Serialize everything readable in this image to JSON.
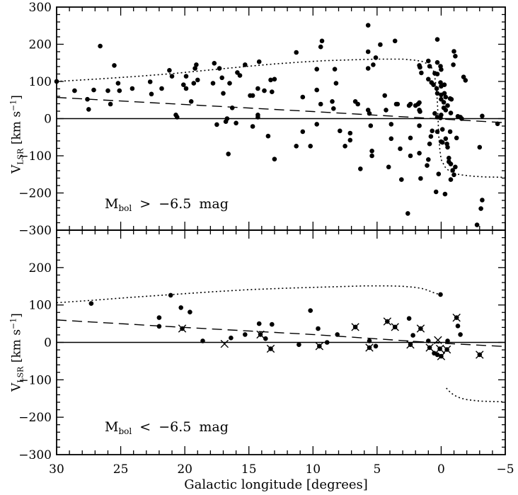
{
  "labels": {
    "x_axis": "Galactic longitude [degrees]",
    "y_axis": {
      "pre": "V",
      "sub": "LSR",
      "mid": " [km s",
      "sup": "−1",
      "end": "]"
    }
  },
  "chart_data": {
    "type": "scatter",
    "title": "",
    "xlabel": "Galactic longitude [degrees]",
    "ylabel": "V_LSR [km s^-1]",
    "xlim": [
      30,
      -5
    ],
    "ylim": [
      -300,
      300
    ],
    "x_axis_reversed": true,
    "grid": false,
    "x_major_ticks": [
      30,
      25,
      20,
      15,
      10,
      5,
      0,
      -5
    ],
    "x_tick_labels": [
      "30",
      "25",
      "20",
      "15",
      "10",
      "5",
      "0",
      "−5"
    ],
    "x_minor_step": 1,
    "y_minor_step": 20,
    "legend": "none",
    "marker": "filled-circle",
    "panels": [
      {
        "name": "Mbol brighter limit panel",
        "annotation": {
          "m": "M",
          "sub": "bol",
          "rest": " > −6.5 mag"
        },
        "tick_values": [
          300,
          200,
          100,
          0,
          -100,
          -200,
          -300
        ],
        "tick_labels": [
          "300",
          "200",
          "100",
          "0",
          "−100",
          "−200",
          "−300"
        ],
        "zero_line": 0,
        "dashed_curve": [
          [
            30,
            57
          ],
          [
            20,
            38
          ],
          [
            10,
            19
          ],
          [
            0,
            -1
          ],
          [
            -5,
            -11
          ]
        ],
        "dotted_curve": [
          [
            30,
            100
          ],
          [
            27,
            106
          ],
          [
            24,
            113
          ],
          [
            21,
            121
          ],
          [
            18,
            131
          ],
          [
            15,
            141
          ],
          [
            13,
            147
          ],
          [
            11,
            152
          ],
          [
            9,
            156
          ],
          [
            7,
            158
          ],
          [
            5,
            160
          ],
          [
            4,
            160
          ],
          [
            3,
            160
          ],
          [
            2,
            157
          ],
          [
            1.5,
            154
          ],
          [
            1.1,
            148
          ],
          [
            0.8,
            140
          ],
          [
            0.6,
            128
          ],
          [
            0.5,
            112
          ],
          [
            0.4,
            88
          ],
          [
            0.3,
            48
          ],
          [
            0.25,
            10
          ],
          [
            0.2,
            -40
          ],
          [
            0.1,
            -85
          ],
          [
            0,
            -110
          ],
          [
            -0.3,
            -130
          ],
          [
            -0.6,
            -140
          ],
          [
            -1,
            -147
          ],
          [
            -1.5,
            -151
          ],
          [
            -2.5,
            -155
          ],
          [
            -3.5,
            -157
          ],
          [
            -5,
            -158
          ]
        ],
        "points": [
          [
            30,
            100
          ],
          [
            28.6,
            75
          ],
          [
            27.6,
            52
          ],
          [
            27.5,
            25
          ],
          [
            27.1,
            77
          ],
          [
            26.6,
            195
          ],
          [
            26.0,
            75
          ],
          [
            25.8,
            39
          ],
          [
            25.5,
            143
          ],
          [
            25.2,
            95
          ],
          [
            25.1,
            75
          ],
          [
            24.1,
            81
          ],
          [
            22.7,
            99
          ],
          [
            22.6,
            66
          ],
          [
            21.8,
            81
          ],
          [
            21.2,
            130
          ],
          [
            21.0,
            114
          ],
          [
            20.7,
            10
          ],
          [
            20.6,
            4
          ],
          [
            20.1,
            91
          ],
          [
            19.9,
            114
          ],
          [
            19.9,
            81
          ],
          [
            19.5,
            46
          ],
          [
            19.3,
            95
          ],
          [
            19.2,
            135
          ],
          [
            19.1,
            145
          ],
          [
            19.0,
            104
          ],
          [
            17.8,
            95
          ],
          [
            17.7,
            149
          ],
          [
            17.5,
            -16
          ],
          [
            17.3,
            135
          ],
          [
            17.1,
            110
          ],
          [
            17.0,
            68
          ],
          [
            16.8,
            -8
          ],
          [
            16.7,
            0
          ],
          [
            16.6,
            -95
          ],
          [
            16.5,
            95
          ],
          [
            16.3,
            29
          ],
          [
            16.0,
            -12
          ],
          [
            15.9,
            124
          ],
          [
            15.7,
            116
          ],
          [
            15.3,
            145
          ],
          [
            14.9,
            62
          ],
          [
            14.7,
            62
          ],
          [
            14.7,
            -21
          ],
          [
            14.3,
            81
          ],
          [
            14.3,
            10
          ],
          [
            14.3,
            4
          ],
          [
            14.2,
            153
          ],
          [
            13.8,
            75
          ],
          [
            13.5,
            -47
          ],
          [
            13.3,
            104
          ],
          [
            13.2,
            72
          ],
          [
            13.0,
            106
          ],
          [
            13.0,
            -109
          ],
          [
            11.3,
            178
          ],
          [
            11.3,
            -74
          ],
          [
            10.8,
            58
          ],
          [
            10.8,
            -35
          ],
          [
            10.2,
            -74
          ],
          [
            9.7,
            133
          ],
          [
            9.7,
            77
          ],
          [
            9.7,
            -15
          ],
          [
            9.4,
            193
          ],
          [
            9.4,
            39
          ],
          [
            9.3,
            209
          ],
          [
            8.5,
            46
          ],
          [
            8.4,
            27
          ],
          [
            8.3,
            133
          ],
          [
            8.2,
            95
          ],
          [
            7.9,
            -33
          ],
          [
            7.5,
            -74
          ],
          [
            7.1,
            -39
          ],
          [
            7.1,
            -58
          ],
          [
            6.7,
            46
          ],
          [
            6.5,
            39
          ],
          [
            6.3,
            -135
          ],
          [
            5.7,
            251
          ],
          [
            5.7,
            180
          ],
          [
            5.7,
            135
          ],
          [
            5.7,
            23
          ],
          [
            5.6,
            14
          ],
          [
            5.5,
            -19
          ],
          [
            5.4,
            -87
          ],
          [
            5.4,
            -100
          ],
          [
            5.3,
            145
          ],
          [
            5.1,
            164
          ],
          [
            4.75,
            199
          ],
          [
            4.4,
            62
          ],
          [
            4.3,
            23
          ],
          [
            4.1,
            -130
          ],
          [
            3.9,
            -15
          ],
          [
            3.9,
            -54
          ],
          [
            3.6,
            209
          ],
          [
            3.5,
            39
          ],
          [
            3.4,
            39
          ],
          [
            3.2,
            -81
          ],
          [
            3.1,
            -164
          ],
          [
            2.6,
            -255
          ],
          [
            2.5,
            35
          ],
          [
            2.4,
            39
          ],
          [
            2.4,
            -52
          ],
          [
            2.4,
            -100
          ],
          [
            2.0,
            35
          ],
          [
            1.8,
            39
          ],
          [
            1.7,
            143
          ],
          [
            1.7,
            43
          ],
          [
            1.7,
            23
          ],
          [
            1.7,
            -19
          ],
          [
            1.7,
            -93
          ],
          [
            1.65,
            138
          ],
          [
            1.65,
            19
          ],
          [
            1.6,
            -161
          ],
          [
            1.55,
            123
          ],
          [
            1.1,
            -126
          ],
          [
            1.0,
            155
          ],
          [
            1.0,
            106
          ],
          [
            1.0,
            -110
          ],
          [
            0.9,
            141
          ],
          [
            0.9,
            -68
          ],
          [
            0.8,
            -48
          ],
          [
            0.75,
            97
          ],
          [
            0.7,
            -33
          ],
          [
            0.6,
            91
          ],
          [
            0.5,
            122
          ],
          [
            0.5,
            14
          ],
          [
            0.4,
            -197
          ],
          [
            0.35,
            81
          ],
          [
            0.3,
            213
          ],
          [
            0.3,
            151
          ],
          [
            0.3,
            120
          ],
          [
            0.3,
            68
          ],
          [
            0.3,
            -35
          ],
          [
            0.3,
            4
          ],
          [
            0.2,
            -149
          ],
          [
            0.05,
            141
          ],
          [
            0.05,
            97
          ],
          [
            0.05,
            2
          ],
          [
            0.0,
            132
          ],
          [
            0.0,
            87
          ],
          [
            0.0,
            64
          ],
          [
            0.0,
            52
          ],
          [
            0.0,
            10
          ],
          [
            0.0,
            -62
          ],
          [
            -0.1,
            -29
          ],
          [
            -0.1,
            -64
          ],
          [
            -0.2,
            44
          ],
          [
            -0.2,
            29
          ],
          [
            -0.25,
            91
          ],
          [
            -0.25,
            68
          ],
          [
            -0.3,
            -203
          ],
          [
            -0.35,
            58
          ],
          [
            -0.35,
            23
          ],
          [
            -0.35,
            -54
          ],
          [
            -0.45,
            -68
          ],
          [
            -0.5,
            35
          ],
          [
            -0.5,
            -77
          ],
          [
            -0.6,
            -106
          ],
          [
            -0.6,
            -116
          ],
          [
            -0.7,
            54
          ],
          [
            -0.7,
            -35
          ],
          [
            -0.75,
            15
          ],
          [
            -0.75,
            -122
          ],
          [
            -0.75,
            -164
          ],
          [
            -0.8,
            52
          ],
          [
            -0.9,
            -139
          ],
          [
            -0.95,
            145
          ],
          [
            -1.0,
            181
          ],
          [
            -1.0,
            -151
          ],
          [
            -1.1,
            168
          ],
          [
            -1.1,
            -130
          ],
          [
            -1.2,
            -52
          ],
          [
            -1.3,
            6
          ],
          [
            -1.5,
            4
          ],
          [
            -1.6,
            0
          ],
          [
            -1.75,
            112
          ],
          [
            -1.9,
            103
          ],
          [
            -2.8,
            -286
          ],
          [
            -3.0,
            -77
          ],
          [
            -3.1,
            -242
          ],
          [
            -3.2,
            7
          ],
          [
            -3.2,
            -219
          ],
          [
            -4.4,
            -14
          ]
        ],
        "crossed_points": [],
        "crosses_only": []
      },
      {
        "name": "Mbol fainter limit panel",
        "annotation": {
          "m": "M",
          "sub": "bol",
          "rest": " < −6.5 mag"
        },
        "tick_values": [
          200,
          100,
          0,
          -100,
          -200,
          -300
        ],
        "tick_labels": [
          "200",
          "100",
          "0",
          "−100",
          "−200",
          "−300"
        ],
        "zero_line": 0,
        "dashed_curve": [
          [
            30,
            60
          ],
          [
            20,
            40
          ],
          [
            10,
            21
          ],
          [
            0,
            -2
          ],
          [
            -5,
            -11
          ]
        ],
        "dotted_curve": [
          [
            30,
            106
          ],
          [
            27,
            113
          ],
          [
            24,
            121
          ],
          [
            21,
            128
          ],
          [
            18,
            135
          ],
          [
            15,
            141
          ],
          [
            12,
            145
          ],
          [
            10,
            147
          ],
          [
            8,
            149
          ],
          [
            6,
            151
          ],
          [
            4,
            151
          ],
          [
            3,
            150
          ],
          [
            2,
            147
          ],
          [
            1.5,
            144
          ],
          [
            1,
            139
          ],
          [
            0.7,
            134
          ],
          [
            0.4,
            131
          ],
          [
            0.15,
            128
          ]
        ],
        "dotted_tail": [
          [
            -0.4,
            -122
          ],
          [
            -0.7,
            -133
          ],
          [
            -1,
            -141
          ],
          [
            -1.5,
            -149
          ],
          [
            -2,
            -153
          ],
          [
            -3,
            -157
          ],
          [
            -4,
            -158
          ],
          [
            -5,
            -159
          ]
        ],
        "points": [
          [
            27.3,
            104
          ],
          [
            22.0,
            66
          ],
          [
            22.0,
            43
          ],
          [
            21.1,
            126
          ],
          [
            20.3,
            93
          ],
          [
            19.6,
            81
          ],
          [
            18.6,
            4
          ],
          [
            16.4,
            12
          ],
          [
            15.3,
            21
          ],
          [
            14.2,
            50
          ],
          [
            13.7,
            10
          ],
          [
            13.2,
            48
          ],
          [
            11.1,
            -6
          ],
          [
            10.2,
            85
          ],
          [
            9.6,
            37
          ],
          [
            8.9,
            0
          ],
          [
            8.1,
            21
          ],
          [
            5.6,
            4
          ],
          [
            5.1,
            -10
          ],
          [
            2.5,
            64
          ],
          [
            2.2,
            19
          ],
          [
            1.0,
            4
          ],
          [
            0.55,
            -29
          ],
          [
            0.3,
            -33
          ],
          [
            -0.5,
            4
          ],
          [
            -1.3,
            44
          ],
          [
            -1.5,
            21
          ],
          [
            0.05,
            128
          ]
        ],
        "crossed_points": [
          [
            20.2,
            37
          ],
          [
            14.1,
            21
          ],
          [
            13.3,
            -17
          ],
          [
            9.5,
            -10
          ],
          [
            6.7,
            41
          ],
          [
            5.6,
            -14
          ],
          [
            4.2,
            56
          ],
          [
            3.6,
            41
          ],
          [
            2.4,
            -6
          ],
          [
            1.6,
            37
          ],
          [
            0.9,
            -14
          ],
          [
            0.1,
            -17
          ],
          [
            0.0,
            -37
          ],
          [
            -0.45,
            -19
          ],
          [
            -1.2,
            66
          ],
          [
            -3.0,
            -33
          ]
        ],
        "crosses_only": [
          [
            16.9,
            -4
          ],
          [
            0.25,
            6
          ]
        ]
      }
    ]
  }
}
